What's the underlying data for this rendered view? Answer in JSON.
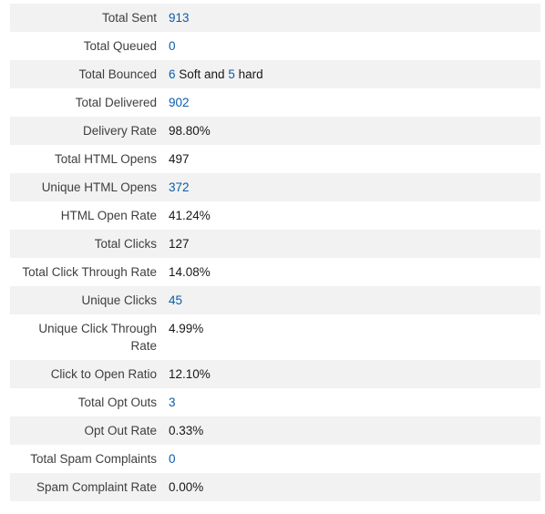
{
  "rows": [
    {
      "label": "Total Sent",
      "value": "913",
      "link": true
    },
    {
      "label": "Total Queued",
      "value": "0",
      "link": true
    },
    {
      "label": "Total Bounced",
      "soft": "6",
      "soft_text": " Soft and ",
      "hard": "5",
      "hard_text": " hard"
    },
    {
      "label": "Total Delivered",
      "value": "902",
      "link": true
    },
    {
      "label": "Delivery Rate",
      "value": "98.80%",
      "link": false
    },
    {
      "label": "Total HTML Opens",
      "value": "497",
      "link": false
    },
    {
      "label": "Unique HTML Opens",
      "value": "372",
      "link": true
    },
    {
      "label": "HTML Open Rate",
      "value": "41.24%",
      "link": false
    },
    {
      "label": "Total Clicks",
      "value": "127",
      "link": false
    },
    {
      "label": "Total Click Through Rate",
      "value": "14.08%",
      "link": false
    },
    {
      "label": "Unique Clicks",
      "value": "45",
      "link": true
    },
    {
      "label": "Unique Click Through Rate",
      "value": "4.99%",
      "link": false
    },
    {
      "label": "Click to Open Ratio",
      "value": "12.10%",
      "link": false
    },
    {
      "label": "Total Opt Outs",
      "value": "3",
      "link": true
    },
    {
      "label": "Opt Out Rate",
      "value": "0.33%",
      "link": false
    },
    {
      "label": "Total Spam Complaints",
      "value": "0",
      "link": true
    },
    {
      "label": "Spam Complaint Rate",
      "value": "0.00%",
      "link": false
    }
  ],
  "colors": {
    "link": "#0b5cab",
    "stripe": "#f2f2f2",
    "label": "#3e3e3c",
    "value": "#181818"
  }
}
